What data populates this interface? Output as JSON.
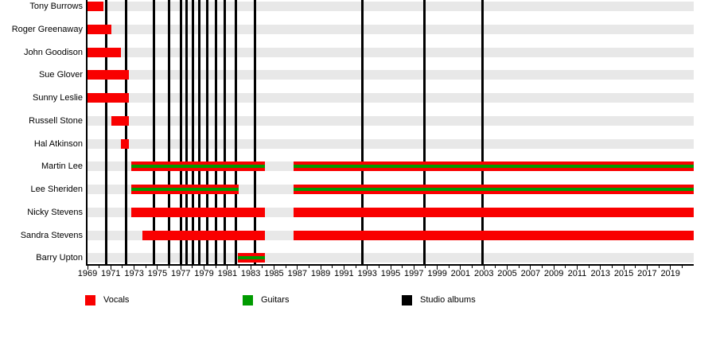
{
  "colors": {
    "vocals": "#f90000",
    "guitars": "#009b00",
    "studio_albums": "#000000",
    "row_track": "#e8e8e8",
    "axis": "#000000"
  },
  "legend": {
    "position": "bottom",
    "items": [
      {
        "id": "vocals",
        "label": "Vocals"
      },
      {
        "id": "guitars",
        "label": "Guitars"
      },
      {
        "id": "studio_albums",
        "label": "Studio albums"
      }
    ]
  },
  "chart_data": {
    "type": "bar",
    "variant": "timeline-gantt-band-members",
    "x_axis": {
      "min": 1969,
      "max": 2021,
      "labeled_ticks": [
        1969,
        1971,
        1973,
        1975,
        1977,
        1979,
        1981,
        1983,
        1985,
        1987,
        1989,
        1991,
        1993,
        1995,
        1997,
        1999,
        2001,
        2003,
        2005,
        2007,
        2009,
        2011,
        2013,
        2015,
        2017,
        2019
      ],
      "minor_tick_every": 1
    },
    "rows": [
      {
        "name": "Tony Burrows",
        "roles": [
          "vocals"
        ],
        "stints": [
          {
            "from": 1969.0,
            "to": 1970.35
          }
        ]
      },
      {
        "name": "Roger Greenaway",
        "roles": [
          "vocals"
        ],
        "stints": [
          {
            "from": 1969.0,
            "to": 1971.05
          }
        ]
      },
      {
        "name": "John Goodison",
        "roles": [
          "vocals"
        ],
        "stints": [
          {
            "from": 1969.0,
            "to": 1971.85
          }
        ]
      },
      {
        "name": "Sue Glover",
        "roles": [
          "vocals"
        ],
        "stints": [
          {
            "from": 1969.0,
            "to": 1972.55
          }
        ]
      },
      {
        "name": "Sunny Leslie",
        "roles": [
          "vocals"
        ],
        "stints": [
          {
            "from": 1969.0,
            "to": 1972.55
          }
        ]
      },
      {
        "name": "Russell Stone",
        "roles": [
          "vocals"
        ],
        "stints": [
          {
            "from": 1971.05,
            "to": 1972.55
          }
        ]
      },
      {
        "name": "Hal Atkinson",
        "roles": [
          "vocals"
        ],
        "stints": [
          {
            "from": 1971.9,
            "to": 1972.55
          }
        ]
      },
      {
        "name": "Martin Lee",
        "roles": [
          "vocals",
          "guitars"
        ],
        "stints": [
          {
            "from": 1972.75,
            "to": 1984.25
          },
          {
            "from": 1986.7,
            "to": 2021
          }
        ]
      },
      {
        "name": "Lee Sheriden",
        "roles": [
          "vocals",
          "guitars"
        ],
        "stints": [
          {
            "from": 1972.75,
            "to": 1982.0
          },
          {
            "from": 1986.7,
            "to": 2021
          }
        ]
      },
      {
        "name": "Nicky Stevens",
        "roles": [
          "vocals"
        ],
        "stints": [
          {
            "from": 1972.75,
            "to": 1984.25
          },
          {
            "from": 1986.7,
            "to": 2021
          }
        ]
      },
      {
        "name": "Sandra Stevens",
        "roles": [
          "vocals"
        ],
        "stints": [
          {
            "from": 1973.7,
            "to": 1984.25
          },
          {
            "from": 1986.7,
            "to": 2021
          }
        ]
      },
      {
        "name": "Barry Upton",
        "roles": [
          "vocals",
          "guitars"
        ],
        "stints": [
          {
            "from": 1981.9,
            "to": 1984.25
          }
        ]
      }
    ],
    "studio_album_years": [
      1970.6,
      1972.3,
      1974.7,
      1976.0,
      1977.0,
      1977.5,
      1978.05,
      1978.6,
      1979.3,
      1980.0,
      1980.8,
      1981.7,
      1983.35,
      1992.6,
      1997.9,
      2002.9
    ]
  }
}
